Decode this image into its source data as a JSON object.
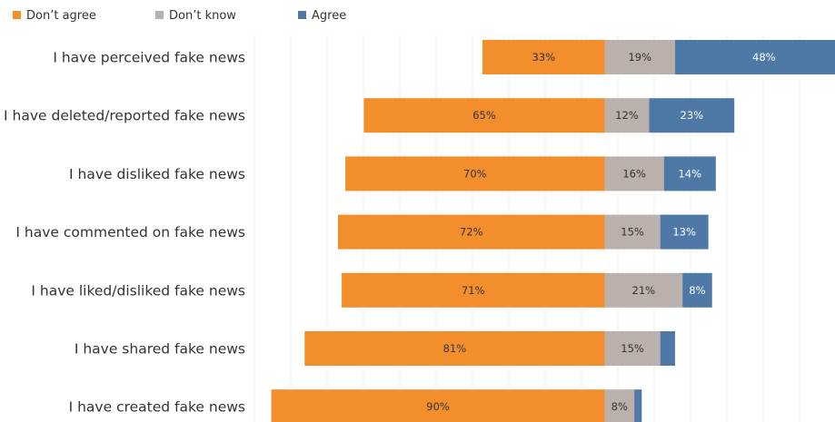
{
  "chart_data": {
    "type": "bar",
    "orientation": "horizontal",
    "stacked": true,
    "diverging": true,
    "title": "",
    "xlabel": "",
    "ylabel": "",
    "categories": [
      "I have perceived fake news",
      "I have deleted/reported fake news",
      "I have disliked fake news",
      "I have commented on fake news",
      "I have liked/disliked fake news",
      "I have shared fake news",
      "I have created fake news"
    ],
    "series": [
      {
        "name": "Don’t agree",
        "color": "#F28E2B",
        "values": [
          33,
          65,
          70,
          72,
          71,
          81,
          90
        ],
        "labels": [
          "33%",
          "65%",
          "70%",
          "72%",
          "71%",
          "81%",
          "90%"
        ]
      },
      {
        "name": "Don’t know",
        "color": "#BAB0AC",
        "values": [
          19,
          12,
          16,
          15,
          21,
          15,
          8
        ],
        "labels": [
          "19%",
          "12%",
          "16%",
          "15%",
          "21%",
          "15%",
          "8%"
        ]
      },
      {
        "name": "Agree",
        "color": "#4E79A7",
        "values": [
          48,
          23,
          14,
          13,
          8,
          4,
          2
        ],
        "labels": [
          "48%",
          "23%",
          "14%",
          "13%",
          "8%",
          "",
          ""
        ]
      }
    ],
    "grid": true,
    "legend_position": "top-left"
  }
}
